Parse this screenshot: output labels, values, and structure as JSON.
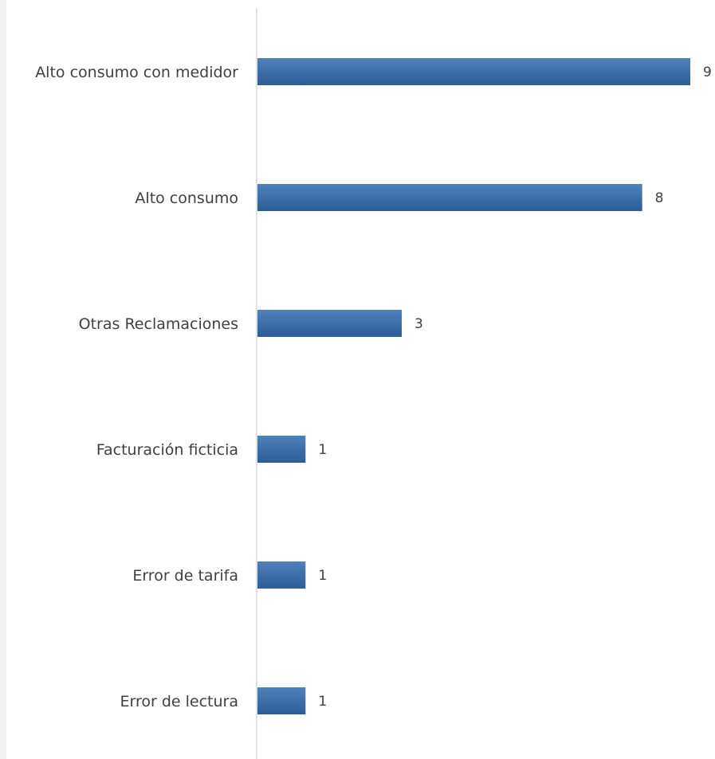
{
  "chart_data": {
    "type": "bar",
    "orientation": "horizontal",
    "categories": [
      "Alto consumo con medidor",
      "Alto consumo",
      "Otras Reclamaciones",
      "Facturación ficticia",
      "Error de tarifa",
      "Error de lectura"
    ],
    "values": [
      9,
      8,
      3,
      1,
      1,
      1
    ],
    "data_labels": [
      "9",
      "8",
      "3",
      "1",
      "1",
      "1"
    ],
    "title": "",
    "xlabel": "",
    "ylabel": "",
    "xlim": [
      0,
      9
    ],
    "grid": false,
    "legend": "none",
    "colors": {
      "bar_top": "#4f81bd",
      "bar_bottom": "#2c5d96",
      "axis": "#d9d9d9",
      "text": "#404040"
    }
  }
}
